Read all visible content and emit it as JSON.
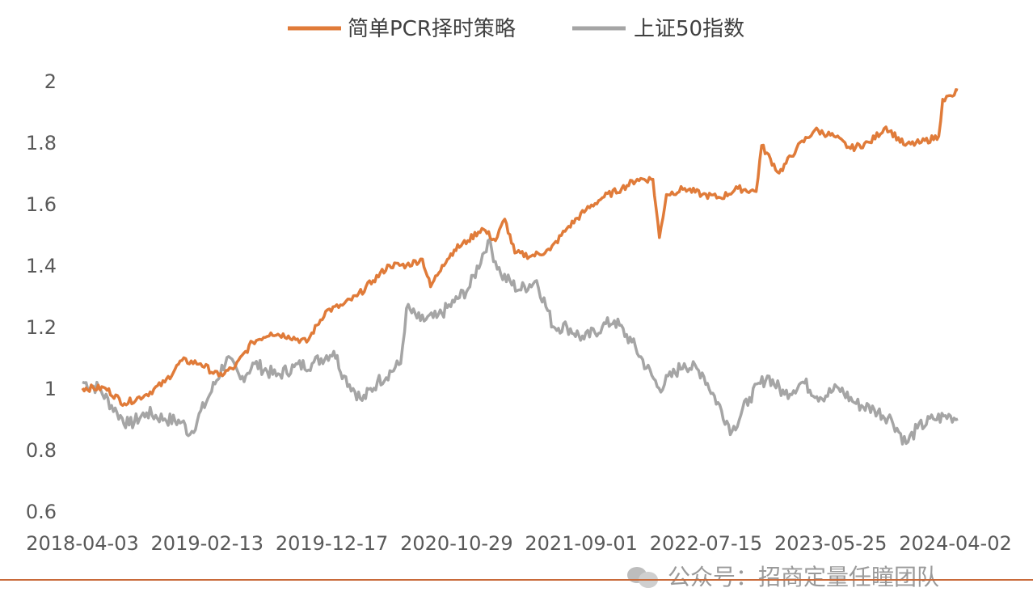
{
  "chart_data": {
    "type": "line",
    "title": "",
    "xlabel": "",
    "ylabel": "",
    "ylim": [
      0.6,
      2.0
    ],
    "yticks": [
      2,
      1.8,
      1.6,
      1.4,
      1.2,
      1,
      0.8,
      0.6
    ],
    "x_tick_labels": [
      "2018-04-03",
      "2019-02-13",
      "2019-12-17",
      "2020-10-29",
      "2021-09-01",
      "2022-07-15",
      "2023-05-25",
      "2024-04-02"
    ],
    "x_start": "2018-04-03",
    "x_end": "2024-06-03",
    "grid": false,
    "legend_position": "top",
    "series": [
      {
        "name": "简单PCR择时策略",
        "color": "#E07B39",
        "points": [
          [
            "2018-04-03",
            1.0
          ],
          [
            "2018-06-01",
            1.0
          ],
          [
            "2018-07-20",
            0.95
          ],
          [
            "2018-09-15",
            0.98
          ],
          [
            "2018-11-01",
            1.02
          ],
          [
            "2018-12-15",
            1.09
          ],
          [
            "2019-02-01",
            1.08
          ],
          [
            "2019-03-20",
            1.04
          ],
          [
            "2019-05-01",
            1.07
          ],
          [
            "2019-06-15",
            1.15
          ],
          [
            "2019-08-01",
            1.18
          ],
          [
            "2019-09-15",
            1.17
          ],
          [
            "2019-11-01",
            1.15
          ],
          [
            "2019-12-20",
            1.25
          ],
          [
            "2020-02-01",
            1.27
          ],
          [
            "2020-03-10",
            1.3
          ],
          [
            "2020-04-20",
            1.35
          ],
          [
            "2020-06-01",
            1.4
          ],
          [
            "2020-07-15",
            1.4
          ],
          [
            "2020-08-25",
            1.42
          ],
          [
            "2020-09-15",
            1.33
          ],
          [
            "2020-10-15",
            1.4
          ],
          [
            "2020-11-15",
            1.45
          ],
          [
            "2020-12-20",
            1.48
          ],
          [
            "2021-01-25",
            1.52
          ],
          [
            "2021-03-01",
            1.48
          ],
          [
            "2021-03-25",
            1.55
          ],
          [
            "2021-04-20",
            1.44
          ],
          [
            "2021-06-01",
            1.43
          ],
          [
            "2021-07-20",
            1.45
          ],
          [
            "2021-09-01",
            1.52
          ],
          [
            "2021-10-20",
            1.58
          ],
          [
            "2021-12-01",
            1.62
          ],
          [
            "2022-01-20",
            1.65
          ],
          [
            "2022-03-01",
            1.68
          ],
          [
            "2022-04-10",
            1.68
          ],
          [
            "2022-04-27",
            1.49
          ],
          [
            "2022-05-15",
            1.63
          ],
          [
            "2022-07-01",
            1.65
          ],
          [
            "2022-08-15",
            1.63
          ],
          [
            "2022-10-01",
            1.62
          ],
          [
            "2022-11-15",
            1.65
          ],
          [
            "2023-01-01",
            1.64
          ],
          [
            "2023-01-15",
            1.79
          ],
          [
            "2023-03-01",
            1.7
          ],
          [
            "2023-04-15",
            1.78
          ],
          [
            "2023-06-01",
            1.84
          ],
          [
            "2023-07-20",
            1.82
          ],
          [
            "2023-09-01",
            1.78
          ],
          [
            "2023-10-20",
            1.8
          ],
          [
            "2023-12-01",
            1.85
          ],
          [
            "2024-01-20",
            1.79
          ],
          [
            "2024-03-01",
            1.8
          ],
          [
            "2024-04-15",
            1.82
          ],
          [
            "2024-04-25",
            1.94
          ],
          [
            "2024-05-20",
            1.95
          ],
          [
            "2024-06-03",
            1.97
          ]
        ]
      },
      {
        "name": "上证50指数",
        "color": "#A5A5A5",
        "points": [
          [
            "2018-04-03",
            1.02
          ],
          [
            "2018-05-15",
            1.0
          ],
          [
            "2018-07-01",
            0.92
          ],
          [
            "2018-08-01",
            0.88
          ],
          [
            "2018-09-15",
            0.92
          ],
          [
            "2018-11-01",
            0.9
          ],
          [
            "2018-12-15",
            0.89
          ],
          [
            "2019-01-05",
            0.85
          ],
          [
            "2019-02-25",
            0.98
          ],
          [
            "2019-04-10",
            1.1
          ],
          [
            "2019-05-15",
            1.03
          ],
          [
            "2019-06-20",
            1.08
          ],
          [
            "2019-08-15",
            1.04
          ],
          [
            "2019-09-30",
            1.07
          ],
          [
            "2019-11-15",
            1.08
          ],
          [
            "2020-01-10",
            1.12
          ],
          [
            "2020-02-05",
            1.04
          ],
          [
            "2020-03-23",
            0.96
          ],
          [
            "2020-05-01",
            1.02
          ],
          [
            "2020-06-30",
            1.08
          ],
          [
            "2020-07-15",
            1.26
          ],
          [
            "2020-08-20",
            1.22
          ],
          [
            "2020-10-01",
            1.23
          ],
          [
            "2020-11-15",
            1.28
          ],
          [
            "2020-12-25",
            1.33
          ],
          [
            "2021-02-10",
            1.48
          ],
          [
            "2021-03-15",
            1.37
          ],
          [
            "2021-05-01",
            1.32
          ],
          [
            "2021-06-15",
            1.35
          ],
          [
            "2021-07-28",
            1.2
          ],
          [
            "2021-09-01",
            1.2
          ],
          [
            "2021-10-15",
            1.16
          ],
          [
            "2021-12-01",
            1.2
          ],
          [
            "2022-01-01",
            1.22
          ],
          [
            "2022-02-15",
            1.15
          ],
          [
            "2022-04-26",
            1.0
          ],
          [
            "2022-06-30",
            1.08
          ],
          [
            "2022-08-15",
            1.05
          ],
          [
            "2022-10-31",
            0.86
          ],
          [
            "2022-12-15",
            0.97
          ],
          [
            "2023-01-30",
            1.04
          ],
          [
            "2023-03-15",
            0.98
          ],
          [
            "2023-05-01",
            1.02
          ],
          [
            "2023-06-15",
            0.97
          ],
          [
            "2023-08-01",
            1.0
          ],
          [
            "2023-09-15",
            0.95
          ],
          [
            "2023-11-01",
            0.93
          ],
          [
            "2023-12-15",
            0.9
          ],
          [
            "2024-01-22",
            0.82
          ],
          [
            "2024-02-20",
            0.87
          ],
          [
            "2024-04-01",
            0.9
          ],
          [
            "2024-05-15",
            0.91
          ],
          [
            "2024-06-03",
            0.9
          ]
        ]
      }
    ]
  },
  "footer": {
    "text": "公众号：招商定量任瞳团队"
  }
}
